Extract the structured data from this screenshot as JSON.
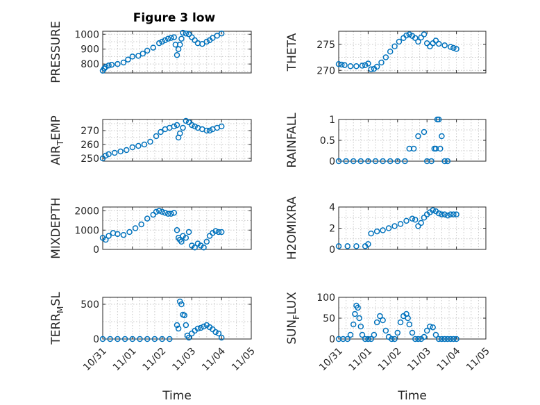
{
  "figure": {
    "title": "Figure 3 low",
    "marker_color": "#0072BD"
  },
  "chart_data": [
    {
      "type": "scatter",
      "ylabel": "PRESSURE",
      "xlabel": "",
      "xlim": [
        0,
        5
      ],
      "ylim": [
        740,
        1020
      ],
      "yticks": [
        800,
        900,
        1000
      ],
      "xticks": [
        0,
        1,
        2,
        3,
        4,
        5
      ],
      "xticklabels": [],
      "x": [
        0.0,
        0.05,
        0.1,
        0.2,
        0.3,
        0.5,
        0.7,
        0.85,
        1.0,
        1.2,
        1.35,
        1.5,
        1.7,
        1.9,
        2.0,
        2.1,
        2.2,
        2.3,
        2.4,
        2.45,
        2.5,
        2.55,
        2.6,
        2.65,
        2.7,
        2.8,
        2.9,
        3.0,
        3.1,
        3.2,
        3.35,
        3.5,
        3.6,
        3.7,
        3.85,
        4.0
      ],
      "y": [
        755,
        770,
        780,
        790,
        795,
        800,
        810,
        830,
        850,
        855,
        870,
        890,
        910,
        940,
        950,
        960,
        970,
        975,
        980,
        930,
        860,
        900,
        930,
        970,
        1010,
        1005,
        1000,
        980,
        960,
        940,
        935,
        950,
        960,
        975,
        990,
        1005
      ]
    },
    {
      "type": "scatter",
      "ylabel": "THETA",
      "xlabel": "",
      "xlim": [
        0,
        5
      ],
      "ylim": [
        269.5,
        277.5
      ],
      "yticks": [
        270,
        275
      ],
      "xticks": [
        0,
        1,
        2,
        3,
        4,
        5
      ],
      "xticklabels": [],
      "x": [
        0.0,
        0.1,
        0.2,
        0.4,
        0.6,
        0.8,
        0.9,
        1.0,
        1.1,
        1.2,
        1.3,
        1.45,
        1.6,
        1.75,
        1.9,
        2.05,
        2.2,
        2.3,
        2.4,
        2.5,
        2.6,
        2.7,
        2.8,
        2.9,
        3.0,
        3.1,
        3.2,
        3.3,
        3.4,
        3.6,
        3.8,
        3.9,
        4.0
      ],
      "y": [
        271.2,
        271.1,
        271.0,
        270.8,
        270.8,
        270.9,
        271.0,
        271.3,
        270.2,
        270.3,
        270.7,
        271.5,
        272.5,
        273.6,
        274.6,
        275.5,
        276.2,
        276.7,
        276.9,
        276.6,
        276.2,
        275.5,
        276.3,
        276.9,
        275.2,
        274.6,
        275.2,
        275.7,
        275.1,
        274.8,
        274.5,
        274.3,
        274.1
      ]
    },
    {
      "type": "scatter",
      "ylabel": "AIR_TEMP",
      "xlabel": "",
      "xlim": [
        0,
        5
      ],
      "ylim": [
        248,
        278
      ],
      "yticks": [
        250,
        260,
        270
      ],
      "xticks": [
        0,
        1,
        2,
        3,
        4,
        5
      ],
      "xticklabels": [],
      "x": [
        0.0,
        0.1,
        0.2,
        0.4,
        0.6,
        0.8,
        1.0,
        1.2,
        1.4,
        1.6,
        1.8,
        1.95,
        2.1,
        2.25,
        2.4,
        2.5,
        2.55,
        2.6,
        2.7,
        2.8,
        2.9,
        3.0,
        3.1,
        3.2,
        3.35,
        3.5,
        3.6,
        3.7,
        3.85,
        4.0
      ],
      "y": [
        250,
        252,
        253,
        254,
        255,
        256,
        258,
        259,
        260,
        262,
        266,
        269,
        271,
        272,
        273,
        274,
        265,
        268,
        272,
        277,
        276,
        274,
        273,
        272,
        271,
        270,
        270,
        271,
        272,
        273
      ]
    },
    {
      "type": "scatter",
      "ylabel": "RAINFALL",
      "xlabel": "",
      "xlim": [
        0,
        5
      ],
      "ylim": [
        0,
        1
      ],
      "yticks": [
        0,
        0.5,
        1
      ],
      "xticks": [
        0,
        1,
        2,
        3,
        4,
        5
      ],
      "xticklabels": [],
      "x": [
        0.0,
        0.25,
        0.5,
        0.75,
        1.0,
        1.25,
        1.5,
        1.75,
        2.0,
        2.25,
        2.4,
        2.55,
        2.7,
        2.9,
        3.0,
        3.15,
        3.25,
        3.3,
        3.35,
        3.4,
        3.45,
        3.5,
        3.6,
        3.7
      ],
      "y": [
        0,
        0,
        0,
        0,
        0,
        0,
        0,
        0,
        0,
        0,
        0.3,
        0.3,
        0.6,
        0.7,
        0,
        0,
        0.3,
        0.3,
        1,
        1,
        0.3,
        0.6,
        0,
        0
      ]
    },
    {
      "type": "scatter",
      "ylabel": "MIXDEPTH",
      "xlabel": "",
      "xlim": [
        0,
        5
      ],
      "ylim": [
        0,
        2200
      ],
      "yticks": [
        0,
        1000,
        2000
      ],
      "xticks": [
        0,
        1,
        2,
        3,
        4,
        5
      ],
      "xticklabels": [],
      "x": [
        0.0,
        0.1,
        0.2,
        0.35,
        0.5,
        0.7,
        0.9,
        1.1,
        1.3,
        1.5,
        1.7,
        1.8,
        1.9,
        2.0,
        2.1,
        2.2,
        2.3,
        2.4,
        2.5,
        2.55,
        2.6,
        2.65,
        2.7,
        2.8,
        2.9,
        3.0,
        3.1,
        3.2,
        3.3,
        3.4,
        3.5,
        3.6,
        3.7,
        3.8,
        3.9,
        4.0
      ],
      "y": [
        600,
        500,
        700,
        850,
        800,
        750,
        900,
        1100,
        1300,
        1600,
        1800,
        1950,
        2000,
        1950,
        1900,
        1850,
        1850,
        1900,
        1000,
        600,
        500,
        400,
        700,
        600,
        900,
        200,
        100,
        300,
        200,
        100,
        400,
        700,
        850,
        950,
        900,
        900
      ]
    },
    {
      "type": "scatter",
      "ylabel": "H2OMIXRA",
      "xlabel": "",
      "xlim": [
        0,
        5
      ],
      "ylim": [
        0,
        4
      ],
      "yticks": [
        0,
        2,
        4
      ],
      "xticks": [
        0,
        1,
        2,
        3,
        4,
        5
      ],
      "xticklabels": [],
      "x": [
        0.0,
        0.3,
        0.6,
        0.9,
        1.0,
        1.1,
        1.3,
        1.5,
        1.7,
        1.9,
        2.1,
        2.3,
        2.5,
        2.6,
        2.7,
        2.8,
        2.9,
        3.0,
        3.1,
        3.2,
        3.3,
        3.4,
        3.5,
        3.6,
        3.7,
        3.8,
        3.9,
        4.0
      ],
      "y": [
        0.3,
        0.3,
        0.3,
        0.3,
        0.5,
        1.5,
        1.7,
        1.8,
        2.0,
        2.2,
        2.4,
        2.7,
        2.9,
        2.8,
        2.2,
        2.5,
        3.0,
        3.3,
        3.5,
        3.7,
        3.6,
        3.4,
        3.3,
        3.3,
        3.2,
        3.3,
        3.3,
        3.3
      ]
    },
    {
      "type": "scatter",
      "ylabel": "TERR_MSL",
      "xlabel": "Time",
      "xlim": [
        0,
        5
      ],
      "ylim": [
        0,
        600
      ],
      "yticks": [
        0,
        500
      ],
      "xticks": [
        0,
        1,
        2,
        3,
        4,
        5
      ],
      "xticklabels": [
        "10/31",
        "11/01",
        "11/02",
        "11/03",
        "11/04",
        "11/05"
      ],
      "x": [
        0.0,
        0.25,
        0.5,
        0.75,
        1.0,
        1.25,
        1.5,
        1.75,
        2.0,
        2.25,
        2.5,
        2.55,
        2.6,
        2.65,
        2.7,
        2.75,
        2.8,
        2.85,
        2.9,
        3.0,
        3.1,
        3.2,
        3.3,
        3.4,
        3.5,
        3.6,
        3.7,
        3.8,
        3.9,
        4.0
      ],
      "y": [
        0,
        0,
        0,
        0,
        0,
        0,
        0,
        0,
        0,
        0,
        200,
        150,
        540,
        500,
        350,
        340,
        200,
        50,
        20,
        80,
        120,
        150,
        160,
        180,
        200,
        170,
        140,
        100,
        80,
        20
      ]
    },
    {
      "type": "scatter",
      "ylabel": "SUN_FLUX",
      "xlabel": "Time",
      "xlim": [
        0,
        5
      ],
      "ylim": [
        0,
        100
      ],
      "yticks": [
        0,
        50,
        100
      ],
      "xticks": [
        0,
        1,
        2,
        3,
        4,
        5
      ],
      "xticklabels": [
        "10/31",
        "11/01",
        "11/02",
        "11/03",
        "11/04",
        "11/05"
      ],
      "x": [
        0.0,
        0.15,
        0.3,
        0.4,
        0.5,
        0.55,
        0.6,
        0.65,
        0.7,
        0.75,
        0.8,
        0.9,
        1.0,
        1.1,
        1.2,
        1.3,
        1.4,
        1.5,
        1.6,
        1.7,
        1.8,
        1.9,
        2.0,
        2.1,
        2.2,
        2.3,
        2.35,
        2.4,
        2.5,
        2.6,
        2.7,
        2.8,
        2.9,
        3.0,
        3.1,
        3.2,
        3.3,
        3.4,
        3.5,
        3.6,
        3.7,
        3.8,
        3.9,
        4.0
      ],
      "y": [
        0,
        0,
        0,
        10,
        35,
        60,
        80,
        75,
        50,
        30,
        10,
        0,
        0,
        0,
        10,
        40,
        55,
        45,
        20,
        5,
        0,
        0,
        15,
        40,
        55,
        60,
        50,
        35,
        15,
        0,
        0,
        0,
        5,
        20,
        30,
        28,
        10,
        0,
        0,
        0,
        0,
        0,
        0,
        0
      ]
    }
  ]
}
